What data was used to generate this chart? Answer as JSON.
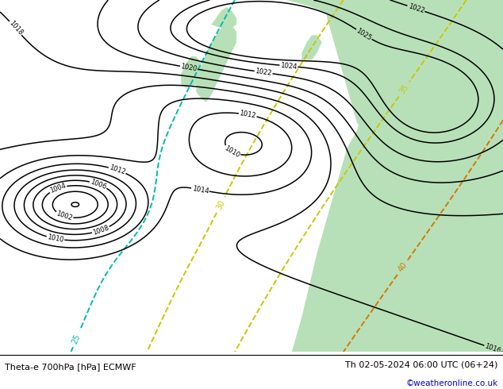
{
  "title_left": "Theta-e 700hPa [hPa] ECMWF",
  "title_right": "Th 02-05-2024 06:00 UTC (06+24)",
  "credit": "©weatheronline.co.uk",
  "bg_color": "#f0f0f0",
  "land_color": "#b8e0b8",
  "text_color": "#000000",
  "credit_color": "#0000cc",
  "figsize": [
    6.34,
    4.9
  ],
  "dpi": 100,
  "isobar_levels": [
    1000,
    1002,
    1004,
    1006,
    1008,
    1010,
    1012,
    1014,
    1016,
    1018,
    1020,
    1022,
    1024,
    1025
  ],
  "theta_levels": [
    25,
    30,
    35,
    40
  ],
  "theta_colors": [
    "#00bbaa",
    "#c8c800",
    "#c8c800",
    "#d47800"
  ]
}
